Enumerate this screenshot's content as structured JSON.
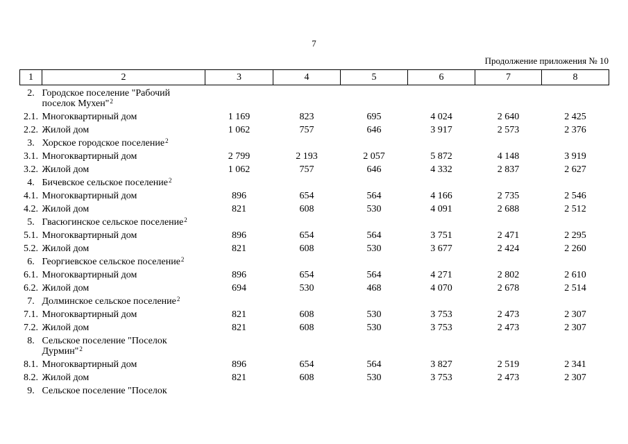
{
  "page": {
    "number": "7",
    "continuation": "Продолжение приложения № 10"
  },
  "table": {
    "column_headers": [
      "1",
      "2",
      "3",
      "4",
      "5",
      "6",
      "7",
      "8"
    ],
    "rows": [
      {
        "num": "2.",
        "name": "Городское поселение \"Рабочий поселок Мухен\"",
        "sup": "2",
        "type": "section",
        "values": [
          "",
          "",
          "",
          "",
          "",
          ""
        ]
      },
      {
        "num": "2.1.",
        "name": "Многоквартирный дом",
        "sup": "",
        "type": "data",
        "values": [
          "1 169",
          "823",
          "695",
          "4 024",
          "2 640",
          "2 425"
        ]
      },
      {
        "num": "2.2.",
        "name": "Жилой дом",
        "sup": "",
        "type": "data",
        "values": [
          "1 062",
          "757",
          "646",
          "3 917",
          "2 573",
          "2 376"
        ]
      },
      {
        "num": "3.",
        "name": "Хорское городское поселение",
        "sup": "2",
        "type": "section",
        "values": [
          "",
          "",
          "",
          "",
          "",
          ""
        ]
      },
      {
        "num": "3.1.",
        "name": "Многоквартирный дом",
        "sup": "",
        "type": "data",
        "values": [
          "2 799",
          "2 193",
          "2 057",
          "5 872",
          "4 148",
          "3 919"
        ]
      },
      {
        "num": "3.2.",
        "name": "Жилой дом",
        "sup": "",
        "type": "data",
        "values": [
          "1 062",
          "757",
          "646",
          "4 332",
          "2 837",
          "2 627"
        ]
      },
      {
        "num": "4.",
        "name": "Бичевское сельское поселение",
        "sup": "2",
        "type": "section",
        "values": [
          "",
          "",
          "",
          "",
          "",
          ""
        ]
      },
      {
        "num": "4.1.",
        "name": "Многоквартирный дом",
        "sup": "",
        "type": "data",
        "values": [
          "896",
          "654",
          "564",
          "4 166",
          "2 735",
          "2 546"
        ]
      },
      {
        "num": "4.2.",
        "name": "Жилой дом",
        "sup": "",
        "type": "data",
        "values": [
          "821",
          "608",
          "530",
          "4 091",
          "2 688",
          "2 512"
        ]
      },
      {
        "num": "5.",
        "name": "Гвасюгинское сельское поселение",
        "sup": "2",
        "type": "section",
        "values": [
          "",
          "",
          "",
          "",
          "",
          ""
        ]
      },
      {
        "num": "5.1.",
        "name": "Многоквартирный дом",
        "sup": "",
        "type": "data",
        "values": [
          "896",
          "654",
          "564",
          "3 751",
          "2 471",
          "2 295"
        ]
      },
      {
        "num": "5.2.",
        "name": "Жилой дом",
        "sup": "",
        "type": "data",
        "values": [
          "821",
          "608",
          "530",
          "3 677",
          "2 424",
          "2 260"
        ]
      },
      {
        "num": "6.",
        "name": "Георгиевское сельское поселение",
        "sup": "2",
        "type": "section",
        "values": [
          "",
          "",
          "",
          "",
          "",
          ""
        ]
      },
      {
        "num": "6.1.",
        "name": "Многоквартирный дом",
        "sup": "",
        "type": "data",
        "values": [
          "896",
          "654",
          "564",
          "4 271",
          "2 802",
          "2 610"
        ]
      },
      {
        "num": "6.2.",
        "name": "Жилой дом",
        "sup": "",
        "type": "data",
        "values": [
          "694",
          "530",
          "468",
          "4 070",
          "2 678",
          "2 514"
        ]
      },
      {
        "num": "7.",
        "name": "Долминское сельское поселение",
        "sup": "2",
        "type": "section",
        "values": [
          "",
          "",
          "",
          "",
          "",
          ""
        ]
      },
      {
        "num": "7.1.",
        "name": "Многоквартирный дом",
        "sup": "",
        "type": "data",
        "values": [
          "821",
          "608",
          "530",
          "3 753",
          "2 473",
          "2 307"
        ]
      },
      {
        "num": "7.2.",
        "name": "Жилой дом",
        "sup": "",
        "type": "data",
        "values": [
          "821",
          "608",
          "530",
          "3 753",
          "2 473",
          "2 307"
        ]
      },
      {
        "num": "8.",
        "name": "Сельское поселение \"Поселок Дурмин\"",
        "sup": "2",
        "type": "section",
        "values": [
          "",
          "",
          "",
          "",
          "",
          ""
        ]
      },
      {
        "num": "8.1.",
        "name": "Многоквартирный дом",
        "sup": "",
        "type": "data",
        "values": [
          "896",
          "654",
          "564",
          "3 827",
          "2 519",
          "2 341"
        ]
      },
      {
        "num": "8.2.",
        "name": "Жилой дом",
        "sup": "",
        "type": "data",
        "values": [
          "821",
          "608",
          "530",
          "3 753",
          "2 473",
          "2 307"
        ]
      },
      {
        "num": "9.",
        "name": "Сельское поселение \"Поселок",
        "sup": "",
        "type": "section",
        "values": [
          "",
          "",
          "",
          "",
          "",
          ""
        ]
      }
    ]
  }
}
